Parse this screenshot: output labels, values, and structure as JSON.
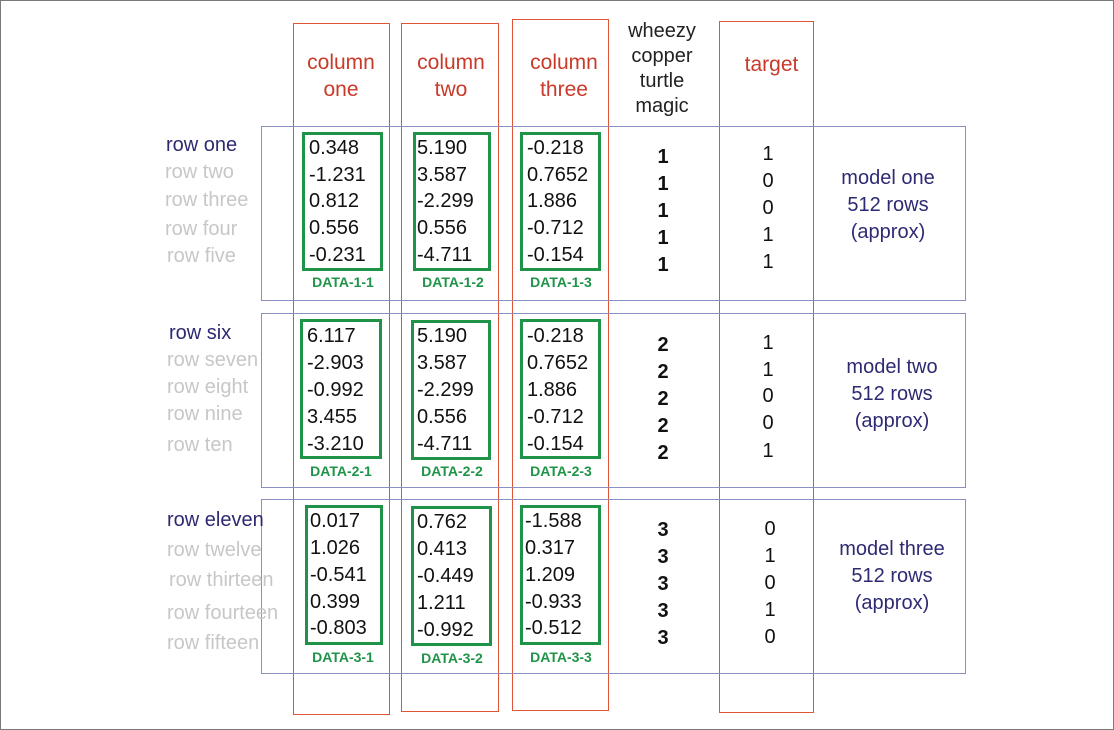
{
  "columns": [
    {
      "lines": [
        "column",
        "one"
      ]
    },
    {
      "lines": [
        "column",
        "two"
      ]
    },
    {
      "lines": [
        "column",
        "three"
      ]
    },
    {
      "lines": [
        "wheezy",
        "copper",
        "turtle",
        "magic"
      ]
    },
    {
      "lines": [
        "target"
      ]
    }
  ],
  "models": [
    {
      "rows": [
        "row one",
        "row two",
        "row three",
        "row four",
        "row five"
      ],
      "data": [
        {
          "label": "DATA-1-1",
          "values": [
            "0.348",
            "-1.231",
            "0.812",
            "0.556",
            "-0.231"
          ]
        },
        {
          "label": "DATA-1-2",
          "values": [
            "5.190",
            "3.587",
            "-2.299",
            "0.556",
            "-4.711"
          ]
        },
        {
          "label": "DATA-1-3",
          "values": [
            "-0.218",
            "0.7652",
            "1.886",
            "-0.712",
            "-0.154"
          ]
        }
      ],
      "wheezy": [
        "1",
        "1",
        "1",
        "1",
        "1"
      ],
      "target": [
        "1",
        "0",
        "0",
        "1",
        "1"
      ],
      "desc": [
        "model one",
        "512 rows",
        "(approx)"
      ]
    },
    {
      "rows": [
        "row six",
        "row seven",
        "row eight",
        "row nine",
        "row ten"
      ],
      "data": [
        {
          "label": "DATA-2-1",
          "values": [
            "6.117",
            "-2.903",
            "-0.992",
            "3.455",
            "-3.210"
          ]
        },
        {
          "label": "DATA-2-2",
          "values": [
            "5.190",
            "3.587",
            "-2.299",
            "0.556",
            "-4.711"
          ]
        },
        {
          "label": "DATA-2-3",
          "values": [
            "-0.218",
            "0.7652",
            "1.886",
            "-0.712",
            "-0.154"
          ]
        }
      ],
      "wheezy": [
        "2",
        "2",
        "2",
        "2",
        "2"
      ],
      "target": [
        "1",
        "1",
        "0",
        "0",
        "1"
      ],
      "desc": [
        "model two",
        "512 rows",
        "(approx)"
      ]
    },
    {
      "rows": [
        "row eleven",
        "row twelve",
        "row thirteen",
        "row fourteen",
        "row fifteen"
      ],
      "data": [
        {
          "label": "DATA-3-1",
          "values": [
            "0.017",
            "1.026",
            "-0.541",
            "0.399",
            "-0.803"
          ]
        },
        {
          "label": "DATA-3-2",
          "values": [
            "0.762",
            "0.413",
            "-0.449",
            "1.211",
            "-0.992"
          ]
        },
        {
          "label": "DATA-3-3",
          "values": [
            "-1.588",
            "0.317",
            "1.209",
            "-0.933",
            "-0.512"
          ]
        }
      ],
      "wheezy": [
        "3",
        "3",
        "3",
        "3",
        "3"
      ],
      "target": [
        "0",
        "1",
        "0",
        "1",
        "0"
      ],
      "desc": [
        "model three",
        "512 rows",
        "(approx)"
      ]
    }
  ]
}
